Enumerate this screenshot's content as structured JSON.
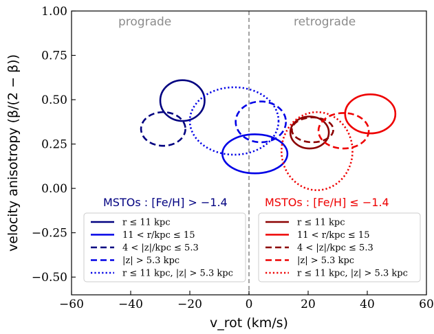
{
  "chart_data": {
    "type": "ellipse-contour",
    "xlabel": "v_rot (km/s)",
    "ylabel": "velocity anisotropy (β/(2 − β))",
    "xlim": [
      -60,
      60
    ],
    "ylim": [
      -0.6,
      1.0
    ],
    "x_ticks": [
      -60,
      -40,
      -20,
      0,
      20,
      40,
      60
    ],
    "x_tick_labels": [
      "−60",
      "−40",
      "−20",
      "0",
      "20",
      "40",
      "60"
    ],
    "y_ticks": [
      -0.5,
      -0.25,
      0.0,
      0.25,
      0.5,
      0.75,
      1.0
    ],
    "y_tick_labels": [
      "−0.50",
      "−0.25",
      "0.00",
      "0.25",
      "0.50",
      "0.75",
      "1.00"
    ],
    "grid": false,
    "divider_x": 0,
    "region_labels": {
      "left": "prograde",
      "right": "retrograde"
    },
    "group_labels": {
      "blue": "MSTOs : [Fe/H] > −1.4",
      "red": "MSTOs : [Fe/H] ≤ −1.4"
    },
    "colors": {
      "navy": "#000080",
      "blue": "#0000e6",
      "darkred": "#8b0000",
      "red": "#ee0000",
      "divider": "#8c8c8c"
    },
    "series": [
      {
        "name": "r ≤ 11 kpc, [Fe/H] > −1.4",
        "color": "navy",
        "dash": "solid",
        "cx": -22.5,
        "cy": 0.495,
        "rx": 7.5,
        "ry": 0.115
      },
      {
        "name": "11 < r/kpc ≤ 15, [Fe/H] > −1.4",
        "color": "blue",
        "dash": "solid",
        "cx": 2,
        "cy": 0.195,
        "rx": 11,
        "ry": 0.11
      },
      {
        "name": "4 < |z|/kpc ≤ 5.3, [Fe/H] > −1.4",
        "color": "navy",
        "dash": "dashed",
        "cx": -29,
        "cy": 0.335,
        "rx": 7.5,
        "ry": 0.095
      },
      {
        "name": "|z| > 5.3 kpc, [Fe/H] > −1.4",
        "color": "blue",
        "dash": "dashed",
        "cx": 4,
        "cy": 0.375,
        "rx": 8.5,
        "ry": 0.115
      },
      {
        "name": "r ≤ 11 kpc, |z| > 5.3 kpc, [Fe/H] > −1.4",
        "color": "blue",
        "dash": "dotted",
        "cx": -5,
        "cy": 0.38,
        "rx": 15,
        "ry": 0.19
      },
      {
        "name": "r ≤ 11 kpc, [Fe/H] ≤ −1.4",
        "color": "darkred",
        "dash": "solid",
        "cx": 20.5,
        "cy": 0.315,
        "rx": 6.5,
        "ry": 0.09
      },
      {
        "name": "11 < r/kpc ≤ 15, [Fe/H] ≤ −1.4",
        "color": "red",
        "dash": "solid",
        "cx": 41,
        "cy": 0.42,
        "rx": 8.5,
        "ry": 0.11
      },
      {
        "name": "4 < |z|/kpc ≤ 5.3, [Fe/H] ≤ −1.4",
        "color": "darkred",
        "dash": "dashed",
        "cx": 21.5,
        "cy": 0.33,
        "rx": 7,
        "ry": 0.07
      },
      {
        "name": "|z| > 5.3 kpc, [Fe/H] ≤ −1.4",
        "color": "red",
        "dash": "dashed",
        "cx": 32,
        "cy": 0.325,
        "rx": 8.5,
        "ry": 0.1
      },
      {
        "name": "r ≤ 11 kpc, |z| > 5.3 kpc, [Fe/H] ≤ −1.4",
        "color": "red",
        "dash": "dotted",
        "cx": 23,
        "cy": 0.21,
        "rx": 12,
        "ry": 0.22
      }
    ],
    "legend": {
      "placement": "bottom",
      "left": [
        {
          "label": "r ≤ 11 kpc",
          "color": "navy",
          "dash": "solid"
        },
        {
          "label": "11 < r/kpc ≤ 15",
          "color": "blue",
          "dash": "solid"
        },
        {
          "label": "4 < |z|/kpc ≤ 5.3",
          "color": "navy",
          "dash": "dashed"
        },
        {
          "label": "|z| > 5.3 kpc",
          "color": "blue",
          "dash": "dashed"
        },
        {
          "label": "r ≤ 11 kpc, |z| > 5.3 kpc",
          "color": "blue",
          "dash": "dotted"
        }
      ],
      "right": [
        {
          "label": "r ≤ 11 kpc",
          "color": "darkred",
          "dash": "solid"
        },
        {
          "label": "11 < r/kpc ≤ 15",
          "color": "red",
          "dash": "solid"
        },
        {
          "label": "4 < |z|/kpc ≤ 5.3",
          "color": "darkred",
          "dash": "dashed"
        },
        {
          "label": "|z| > 5.3 kpc",
          "color": "red",
          "dash": "dashed"
        },
        {
          "label": "r ≤ 11 kpc, |z| > 5.3 kpc",
          "color": "red",
          "dash": "dotted"
        }
      ]
    }
  }
}
